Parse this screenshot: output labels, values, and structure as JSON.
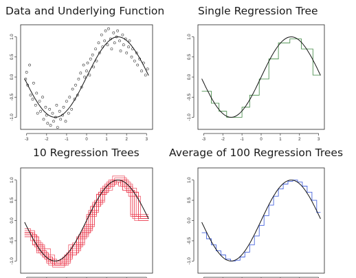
{
  "chart_data": [
    {
      "type": "scatter",
      "title": "Data and Underlying Function",
      "xlim": [
        -3.3,
        3.3
      ],
      "ylim": [
        -1.3,
        1.3
      ],
      "xticks": [
        -3,
        -2,
        -1,
        0,
        1,
        2,
        3
      ],
      "xtick_labels": [
        "-3",
        "-2",
        "-1",
        "0",
        "1",
        "2",
        "3"
      ],
      "yticks": [
        -1.0,
        -0.5,
        0.0,
        0.5,
        1.0
      ],
      "ytick_labels": [
        "-1.0",
        "-0.5",
        "0.0",
        "0.5",
        "1.0"
      ],
      "function": "sin",
      "line_color": "#111111",
      "point_color": "#333333",
      "points": [
        [
          -3.05,
          -0.05
        ],
        [
          -3.0,
          0.12
        ],
        [
          -2.95,
          -0.2
        ],
        [
          -2.85,
          0.3
        ],
        [
          -2.8,
          -0.45
        ],
        [
          -2.7,
          -0.55
        ],
        [
          -2.65,
          -0.15
        ],
        [
          -2.55,
          -0.7
        ],
        [
          -2.5,
          -0.4
        ],
        [
          -2.45,
          -0.9
        ],
        [
          -2.35,
          -0.6
        ],
        [
          -2.3,
          -0.85
        ],
        [
          -2.2,
          -0.5
        ],
        [
          -2.15,
          -1.05
        ],
        [
          -2.05,
          -0.75
        ],
        [
          -2.0,
          -0.95
        ],
        [
          -1.95,
          -1.15
        ],
        [
          -1.85,
          -0.8
        ],
        [
          -1.8,
          -1.2
        ],
        [
          -1.7,
          -0.9
        ],
        [
          -1.65,
          -1.1
        ],
        [
          -1.55,
          -1.0
        ],
        [
          -1.5,
          -0.7
        ],
        [
          -1.45,
          -1.25
        ],
        [
          -1.35,
          -0.85
        ],
        [
          -1.3,
          -1.05
        ],
        [
          -1.2,
          -0.95
        ],
        [
          -1.15,
          -0.75
        ],
        [
          -1.05,
          -1.1
        ],
        [
          -1.0,
          -0.6
        ],
        [
          -0.9,
          -0.9
        ],
        [
          -0.85,
          -0.5
        ],
        [
          -0.75,
          -0.8
        ],
        [
          -0.7,
          -0.3
        ],
        [
          -0.6,
          -0.55
        ],
        [
          -0.55,
          -0.2
        ],
        [
          -0.45,
          -0.45
        ],
        [
          -0.4,
          -0.05
        ],
        [
          -0.3,
          0.1
        ],
        [
          -0.25,
          -0.25
        ],
        [
          -0.15,
          0.3
        ],
        [
          -0.1,
          0.0
        ],
        [
          0.0,
          0.15
        ],
        [
          0.05,
          0.35
        ],
        [
          0.15,
          0.05
        ],
        [
          0.2,
          0.45
        ],
        [
          0.3,
          0.55
        ],
        [
          0.35,
          0.25
        ],
        [
          0.45,
          0.7
        ],
        [
          0.5,
          0.4
        ],
        [
          0.6,
          0.85
        ],
        [
          0.65,
          0.6
        ],
        [
          0.75,
          1.05
        ],
        [
          0.8,
          0.75
        ],
        [
          0.9,
          0.9
        ],
        [
          0.95,
          1.15
        ],
        [
          1.05,
          0.8
        ],
        [
          1.1,
          1.2
        ],
        [
          1.2,
          0.95
        ],
        [
          1.25,
          0.7
        ],
        [
          1.35,
          1.1
        ],
        [
          1.4,
          0.85
        ],
        [
          1.5,
          1.0
        ],
        [
          1.55,
          1.15
        ],
        [
          1.65,
          0.9
        ],
        [
          1.7,
          0.65
        ],
        [
          1.8,
          1.05
        ],
        [
          1.85,
          0.8
        ],
        [
          1.95,
          0.95
        ],
        [
          2.0,
          0.6
        ],
        [
          2.1,
          0.75
        ],
        [
          2.15,
          0.9
        ],
        [
          2.25,
          0.5
        ],
        [
          2.3,
          0.7
        ],
        [
          2.4,
          0.4
        ],
        [
          2.5,
          0.6
        ],
        [
          2.55,
          0.3
        ],
        [
          2.65,
          0.45
        ],
        [
          2.75,
          0.15
        ],
        [
          2.85,
          0.35
        ],
        [
          2.95,
          0.05
        ],
        [
          3.05,
          0.2
        ]
      ]
    },
    {
      "type": "line",
      "title": "Single Regression Tree",
      "xlim": [
        -3.3,
        3.3
      ],
      "ylim": [
        -1.3,
        1.3
      ],
      "xticks": [
        -3,
        -2,
        -1,
        0,
        1,
        2,
        3
      ],
      "xtick_labels": [
        "-3",
        "-2",
        "-1",
        "0",
        "1",
        "2",
        "3"
      ],
      "yticks": [
        -1.0,
        -0.5,
        0.0,
        0.5,
        1.0
      ],
      "ytick_labels": [
        "-1.0",
        "-0.5",
        "0.0",
        "0.5",
        "1.0"
      ],
      "function": "sin",
      "line_color": "#111111",
      "tree_color": "#2e7d32",
      "trees": [
        {
          "breaks": [
            -3.1,
            -2.6,
            -2.2,
            -1.8,
            -1.0,
            -0.6,
            -0.1,
            0.4,
            0.9,
            1.5,
            2.1,
            2.7,
            3.1
          ],
          "values": [
            -0.35,
            -0.65,
            -0.85,
            -1.0,
            -0.75,
            -0.45,
            -0.05,
            0.45,
            0.85,
            0.95,
            0.7,
            0.05
          ]
        }
      ]
    },
    {
      "type": "line",
      "title": "10 Regression Trees",
      "xlim": [
        -3.3,
        3.3
      ],
      "ylim": [
        -1.3,
        1.3
      ],
      "xticks": [
        -3,
        -2,
        -1,
        0,
        1,
        2,
        3
      ],
      "xtick_labels": [
        "",
        "",
        "",
        "",
        "",
        "",
        ""
      ],
      "yticks": [
        -1.0,
        -0.5,
        0.0,
        0.5,
        1.0
      ],
      "ytick_labels": [
        "-1.0",
        "-0.5",
        "0.0",
        "0.5",
        "1.0"
      ],
      "function": "sin",
      "line_color": "#111111",
      "tree_color": "#e8253b",
      "trees": [
        {
          "breaks": [
            -3.1,
            -2.5,
            -2.0,
            -1.5,
            -0.8,
            -0.3,
            0.2,
            0.7,
            1.2,
            1.8,
            2.4,
            3.1
          ],
          "values": [
            -0.35,
            -0.75,
            -1.05,
            -1.05,
            -0.7,
            -0.3,
            0.35,
            0.8,
            1.0,
            0.75,
            0.1
          ]
        },
        {
          "breaks": [
            -3.1,
            -2.7,
            -2.1,
            -1.6,
            -1.0,
            -0.4,
            0.1,
            0.6,
            1.1,
            1.7,
            2.3,
            3.1
          ],
          "values": [
            -0.3,
            -0.6,
            -0.95,
            -1.1,
            -0.8,
            -0.4,
            0.2,
            0.7,
            0.95,
            0.85,
            0.05
          ]
        },
        {
          "breaks": [
            -3.1,
            -2.4,
            -1.9,
            -1.3,
            -0.9,
            -0.2,
            0.3,
            0.8,
            1.4,
            2.0,
            2.6,
            3.1
          ],
          "values": [
            -0.4,
            -0.8,
            -1.0,
            -0.95,
            -0.6,
            -0.2,
            0.45,
            0.85,
            1.05,
            0.7,
            0.0
          ]
        },
        {
          "breaks": [
            -3.1,
            -2.6,
            -2.2,
            -1.7,
            -1.1,
            -0.5,
            0.0,
            0.5,
            1.0,
            1.6,
            2.2,
            3.1
          ],
          "values": [
            -0.25,
            -0.55,
            -0.9,
            -1.15,
            -0.85,
            -0.45,
            0.1,
            0.65,
            0.9,
            0.95,
            0.15
          ]
        },
        {
          "breaks": [
            -3.1,
            -2.5,
            -1.8,
            -1.2,
            -0.7,
            -0.1,
            0.4,
            0.9,
            1.5,
            2.1,
            2.7,
            3.1
          ],
          "values": [
            -0.35,
            -0.7,
            -1.05,
            -0.9,
            -0.55,
            -0.1,
            0.5,
            0.9,
            1.0,
            0.6,
            0.05
          ]
        },
        {
          "breaks": [
            -3.1,
            -2.8,
            -2.3,
            -1.6,
            -0.9,
            -0.3,
            0.2,
            0.7,
            1.3,
            1.9,
            2.5,
            3.1
          ],
          "values": [
            -0.2,
            -0.5,
            -0.85,
            -1.1,
            -0.75,
            -0.3,
            0.35,
            0.75,
            1.1,
            0.8,
            0.1
          ]
        },
        {
          "breaks": [
            -3.1,
            -2.4,
            -2.0,
            -1.4,
            -0.8,
            -0.2,
            0.3,
            0.8,
            1.2,
            1.8,
            2.4,
            3.1
          ],
          "values": [
            -0.4,
            -0.75,
            -1.0,
            -1.0,
            -0.65,
            -0.25,
            0.4,
            0.8,
            0.95,
            0.75,
            0.0
          ]
        },
        {
          "breaks": [
            -3.1,
            -2.6,
            -2.1,
            -1.5,
            -1.0,
            -0.4,
            0.1,
            0.6,
            1.1,
            1.7,
            2.3,
            3.1
          ],
          "values": [
            -0.3,
            -0.65,
            -0.95,
            -1.05,
            -0.8,
            -0.35,
            0.25,
            0.7,
            1.0,
            0.9,
            0.1
          ]
        },
        {
          "breaks": [
            -3.1,
            -2.5,
            -1.9,
            -1.3,
            -0.7,
            -0.1,
            0.4,
            0.9,
            1.4,
            2.0,
            2.6,
            3.1
          ],
          "values": [
            -0.35,
            -0.8,
            -1.1,
            -0.95,
            -0.6,
            -0.15,
            0.45,
            0.85,
            1.0,
            0.7,
            0.05
          ]
        },
        {
          "breaks": [
            -3.1,
            -2.7,
            -2.2,
            -1.7,
            -1.1,
            -0.5,
            0.0,
            0.5,
            1.0,
            1.6,
            2.2,
            3.1
          ],
          "values": [
            -0.3,
            -0.6,
            -0.9,
            -1.1,
            -0.85,
            -0.4,
            0.15,
            0.65,
            0.95,
            0.85,
            0.1
          ]
        }
      ]
    },
    {
      "type": "line",
      "title": "Average of 100 Regression Trees",
      "xlim": [
        -3.3,
        3.3
      ],
      "ylim": [
        -1.3,
        1.3
      ],
      "xticks": [
        -3,
        -2,
        -1,
        0,
        1,
        2,
        3
      ],
      "xtick_labels": [
        "",
        "",
        "",
        "",
        "",
        "",
        ""
      ],
      "yticks": [
        -1.0,
        -0.5,
        0.0,
        0.5,
        1.0
      ],
      "ytick_labels": [
        "-1.0",
        "-0.5",
        "0.0",
        "0.5",
        "1.0"
      ],
      "function": "sin",
      "line_color": "#111111",
      "tree_color": "#3b5bdb",
      "trees": [
        {
          "breaks": [
            -3.1,
            -2.85,
            -2.6,
            -2.35,
            -2.1,
            -1.85,
            -1.6,
            -1.35,
            -1.1,
            -0.85,
            -0.6,
            -0.35,
            -0.1,
            0.15,
            0.4,
            0.65,
            0.9,
            1.15,
            1.4,
            1.65,
            1.9,
            2.15,
            2.4,
            2.65,
            2.9,
            3.1
          ],
          "values": [
            -0.3,
            -0.45,
            -0.6,
            -0.75,
            -0.85,
            -0.95,
            -1.0,
            -0.98,
            -0.9,
            -0.78,
            -0.6,
            -0.38,
            -0.12,
            0.12,
            0.38,
            0.6,
            0.78,
            0.9,
            0.97,
            1.0,
            0.95,
            0.85,
            0.7,
            0.5,
            0.2
          ]
        }
      ]
    }
  ]
}
